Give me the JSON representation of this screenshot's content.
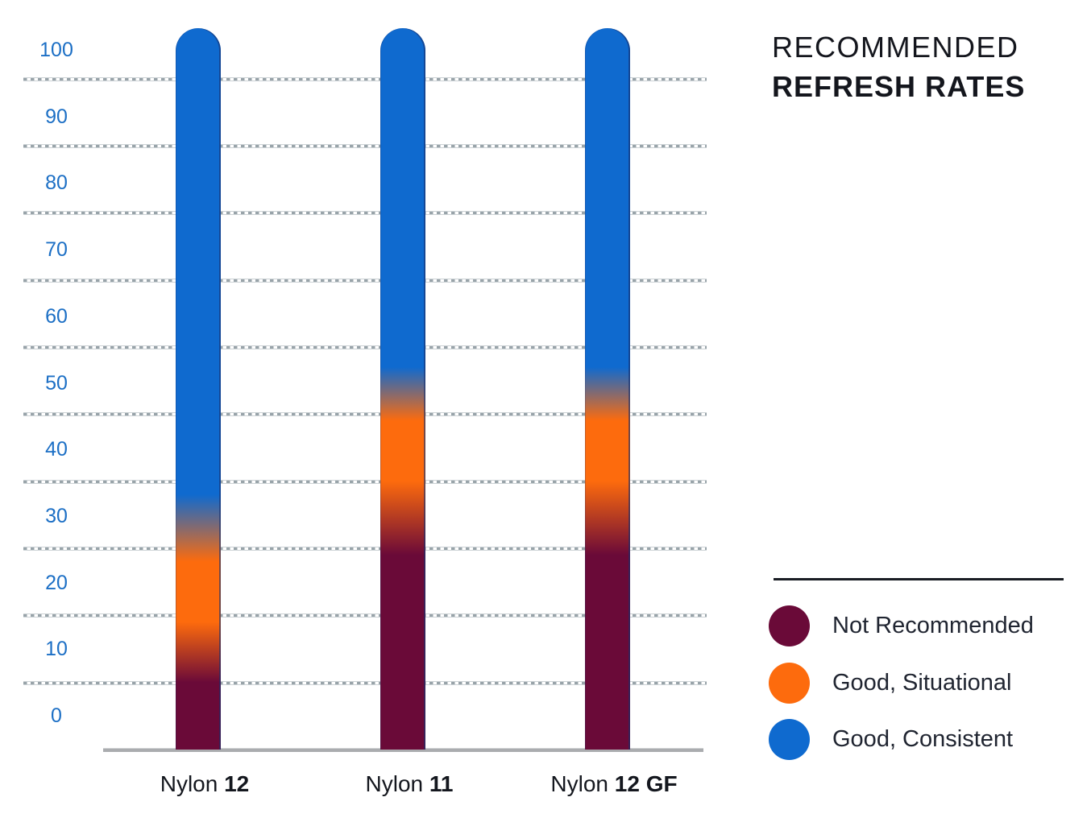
{
  "title": {
    "line1": "RECOMMENDED",
    "line2": "REFRESH RATES"
  },
  "chart_data": {
    "type": "bar",
    "subtype": "gradient-zone-columns",
    "title": "RECOMMENDED REFRESH RATES",
    "xlabel": "",
    "ylabel": "",
    "grid": "dashed-horizontal",
    "legend_position": "bottom-right",
    "y_axis": {
      "min": 0,
      "max": 100,
      "tick_step": 10,
      "ticks": [
        100,
        90,
        80,
        70,
        60,
        50,
        40,
        30,
        20,
        10,
        0
      ],
      "gridlines": [
        100,
        90,
        80,
        70,
        60,
        50,
        40,
        30,
        20,
        10
      ]
    },
    "categories": [
      {
        "name": "Nylon 12",
        "label_prefix": "Nylon ",
        "label_bold": "12",
        "bar_top_value": 100,
        "zones": {
          "not_recommended": [
            0,
            14
          ],
          "good_situational": [
            14,
            33
          ],
          "good_consistent": [
            33,
            100
          ]
        },
        "gradient_stops": {
          "solid_maroon_until": 10,
          "solid_orange_from": 19,
          "solid_orange_until": 28,
          "solid_blue_from": 38
        }
      },
      {
        "name": "Nylon 11",
        "label_prefix": "Nylon ",
        "label_bold": "11",
        "bar_top_value": 100,
        "zones": {
          "not_recommended": [
            0,
            34
          ],
          "good_situational": [
            34,
            53
          ],
          "good_consistent": [
            53,
            100
          ]
        },
        "gradient_stops": {
          "solid_maroon_until": 29,
          "solid_orange_from": 40,
          "solid_orange_until": 49,
          "solid_blue_from": 57
        }
      },
      {
        "name": "Nylon 12 GF",
        "label_prefix": "Nylon ",
        "label_bold": "12 GF",
        "bar_top_value": 100,
        "zones": {
          "not_recommended": [
            0,
            34
          ],
          "good_situational": [
            34,
            53
          ],
          "good_consistent": [
            53,
            100
          ]
        },
        "gradient_stops": {
          "solid_maroon_until": 29,
          "solid_orange_from": 40,
          "solid_orange_until": 49,
          "solid_blue_from": 57
        }
      }
    ],
    "legend": [
      {
        "label": "Not Recommended",
        "color": "#6A0A38",
        "swatch": "circle"
      },
      {
        "label": "Good, Situational",
        "color": "#FD6B0D",
        "swatch": "circle"
      },
      {
        "label": "Good, Consistent",
        "color": "#0F6ACF",
        "swatch": "circle"
      }
    ],
    "colors": {
      "not_recommended": "#6A0A38",
      "good_situational": "#FD6B0D",
      "good_consistent": "#0F6ACF",
      "axis_tick_label": "#1C6FC5",
      "grid_dash": "#98A3A9",
      "baseline": "#AAACAF",
      "text": "#14171E"
    }
  }
}
